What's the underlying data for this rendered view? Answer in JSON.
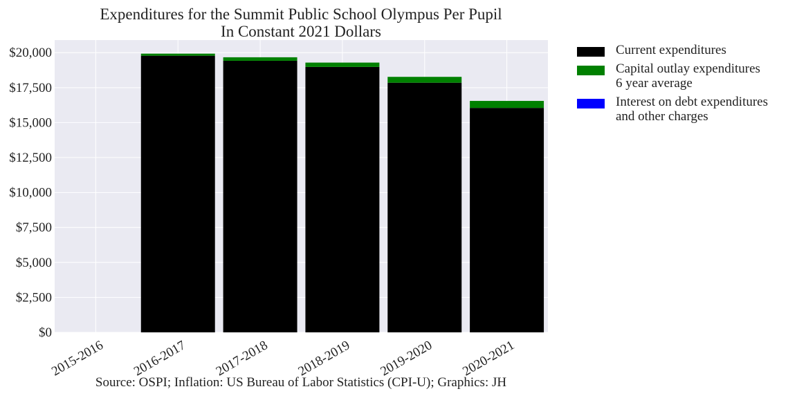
{
  "chart_data": {
    "type": "bar",
    "stacked": true,
    "title": "Expenditures for the Summit Public School Olympus Per Pupil\nIn Constant 2021 Dollars",
    "categories": [
      "2015-2016",
      "2016-2017",
      "2017-2018",
      "2018-2019",
      "2019-2020",
      "2020-2021"
    ],
    "series": [
      {
        "name": "Current expenditures",
        "color": "#000000",
        "values": [
          0,
          19780,
          19420,
          18980,
          17850,
          16050
        ]
      },
      {
        "name": "Capital outlay expenditures\n6 year average",
        "color": "#008000",
        "values": [
          0,
          150,
          250,
          310,
          420,
          500
        ]
      },
      {
        "name": "Interest on debt expenditures\nand other charges",
        "color": "#0000ff",
        "values": [
          0,
          0,
          0,
          0,
          0,
          0
        ]
      }
    ],
    "ylim": [
      0,
      20900
    ],
    "yticks": [
      0,
      2500,
      5000,
      7500,
      10000,
      12500,
      15000,
      17500,
      20000
    ],
    "ytick_labels": [
      "$0",
      "$2,500",
      "$5,000",
      "$7,500",
      "$10,000",
      "$12,500",
      "$15,000",
      "$17,500",
      "$20,000"
    ],
    "xlabel": "",
    "ylabel": "",
    "grid": true,
    "legend_position": "outside-right",
    "plot_background": "#eaeaf2",
    "source": "Source: OSPI; Inflation: US Bureau of Labor Statistics (CPI-U); Graphics: JH"
  }
}
